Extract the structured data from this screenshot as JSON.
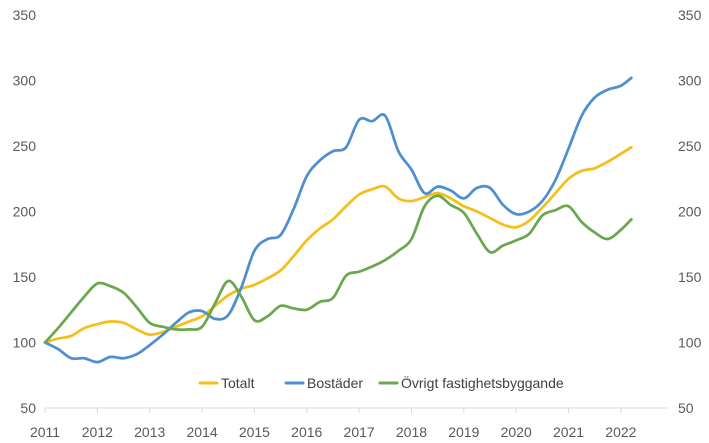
{
  "chart_data": {
    "type": "line",
    "title": "",
    "xlabel": "",
    "ylabel": "",
    "ylim": [
      50,
      350
    ],
    "yticks": [
      50,
      100,
      150,
      200,
      250,
      300,
      350
    ],
    "xlim": [
      2011,
      2022.9
    ],
    "xticks": [
      2011,
      2012,
      2013,
      2014,
      2015,
      2016,
      2017,
      2018,
      2019,
      2020,
      2021,
      2022
    ],
    "grid": false,
    "secondary_y_axis": true,
    "legend_position": "bottom-center",
    "series": [
      {
        "name": "Totalt",
        "color": "#F5BE1A",
        "x": [
          2011.0,
          2011.25,
          2011.5,
          2011.75,
          2012.0,
          2012.25,
          2012.5,
          2012.75,
          2013.0,
          2013.25,
          2013.5,
          2013.75,
          2014.0,
          2014.25,
          2014.5,
          2014.75,
          2015.0,
          2015.25,
          2015.5,
          2015.75,
          2016.0,
          2016.25,
          2016.5,
          2016.75,
          2017.0,
          2017.25,
          2017.5,
          2017.75,
          2018.0,
          2018.25,
          2018.5,
          2018.75,
          2019.0,
          2019.25,
          2019.5,
          2019.75,
          2020.0,
          2020.25,
          2020.5,
          2020.75,
          2021.0,
          2021.25,
          2021.5,
          2021.75,
          2022.0,
          2022.2
        ],
        "values": [
          100,
          103,
          105,
          111,
          114,
          116,
          115,
          110,
          106,
          108,
          112,
          116,
          120,
          128,
          136,
          141,
          144,
          149,
          155,
          166,
          178,
          187,
          194,
          204,
          213,
          217,
          219,
          210,
          208,
          211,
          214,
          210,
          204,
          200,
          195,
          190,
          188,
          193,
          203,
          214,
          225,
          231,
          233,
          238,
          244,
          249
        ]
      },
      {
        "name": "Bostäder",
        "color": "#4E8FD0",
        "x": [
          2011.0,
          2011.25,
          2011.5,
          2011.75,
          2012.0,
          2012.25,
          2012.5,
          2012.75,
          2013.0,
          2013.25,
          2013.5,
          2013.75,
          2014.0,
          2014.25,
          2014.5,
          2014.75,
          2015.0,
          2015.25,
          2015.5,
          2015.75,
          2016.0,
          2016.25,
          2016.5,
          2016.75,
          2017.0,
          2017.25,
          2017.5,
          2017.75,
          2018.0,
          2018.25,
          2018.5,
          2018.75,
          2019.0,
          2019.25,
          2019.5,
          2019.75,
          2020.0,
          2020.25,
          2020.5,
          2020.75,
          2021.0,
          2021.25,
          2021.5,
          2021.75,
          2022.0,
          2022.2
        ],
        "values": [
          100,
          95,
          88,
          88,
          85,
          89,
          88,
          91,
          98,
          106,
          115,
          123,
          124,
          118,
          121,
          142,
          170,
          179,
          182,
          202,
          227,
          239,
          246,
          249,
          270,
          269,
          273,
          246,
          232,
          214,
          219,
          216,
          210,
          218,
          218,
          205,
          198,
          200,
          208,
          224,
          248,
          273,
          287,
          293,
          296,
          302
        ]
      },
      {
        "name": "Övrigt fastighetsbyggande",
        "color": "#6AA84F",
        "x": [
          2011.0,
          2011.25,
          2011.5,
          2011.75,
          2012.0,
          2012.25,
          2012.5,
          2012.75,
          2013.0,
          2013.25,
          2013.5,
          2013.75,
          2014.0,
          2014.25,
          2014.5,
          2014.75,
          2015.0,
          2015.25,
          2015.5,
          2015.75,
          2016.0,
          2016.25,
          2016.5,
          2016.75,
          2017.0,
          2017.25,
          2017.5,
          2017.75,
          2018.0,
          2018.25,
          2018.5,
          2018.75,
          2019.0,
          2019.25,
          2019.5,
          2019.75,
          2020.0,
          2020.25,
          2020.5,
          2020.75,
          2021.0,
          2021.25,
          2021.5,
          2021.75,
          2022.0,
          2022.2
        ],
        "values": [
          100,
          111,
          123,
          135,
          145,
          143,
          138,
          127,
          115,
          112,
          110,
          110,
          112,
          130,
          147,
          135,
          117,
          120,
          128,
          126,
          125,
          131,
          134,
          151,
          154,
          158,
          163,
          170,
          179,
          204,
          212,
          205,
          199,
          183,
          169,
          174,
          178,
          183,
          197,
          201,
          204,
          192,
          184,
          179,
          186,
          194
        ]
      }
    ]
  }
}
